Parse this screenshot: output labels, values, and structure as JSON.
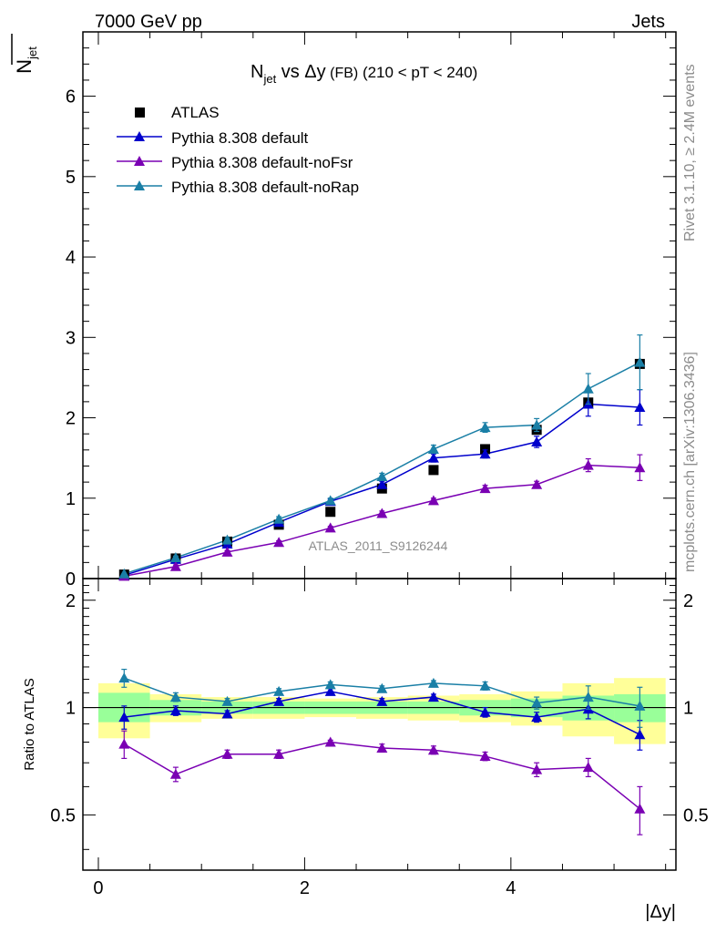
{
  "header": {
    "left": "7000 GeV pp",
    "right": "Jets"
  },
  "side_labels": {
    "rivet": "Rivet 3.1.10, ≥ 2.4M events",
    "mcplots": "mcplots.cern.ch [arXiv:1306.3436]"
  },
  "watermark": "ATLAS_2011_S9126244",
  "title": {
    "prefix": "N",
    "prefix_sub": "jet",
    "middle": " vs Δy",
    "small": " (FB)",
    "range": " (210 < pT < 240)"
  },
  "ylabel": {
    "main": "N",
    "sub": "jet"
  },
  "ratio_ylabel": "Ratio to ATLAS",
  "xlabel": "|Δy|",
  "colors": {
    "atlas": "#000000",
    "default": "#0000cc",
    "noFsr": "#7a00b3",
    "noRap": "#1a7fa6",
    "band_inner": "#99ff99",
    "band_outer": "#ffff99"
  },
  "chart_data": {
    "type": "scatter",
    "main": {
      "xlim": [
        -0.15,
        5.6
      ],
      "ylim": [
        0,
        6.8
      ],
      "yticks": [
        0,
        1,
        2,
        3,
        4,
        5,
        6
      ],
      "ytick_labels": [
        "0",
        "1",
        "2",
        "3",
        "4",
        "5",
        "6"
      ]
    },
    "ratio": {
      "ylim": [
        0.35,
        2.3
      ],
      "yticks": [
        0.5,
        1,
        2
      ],
      "ytick_labels": [
        "0.5",
        "1",
        "2"
      ]
    },
    "xticks": [
      0,
      2,
      4
    ],
    "xtick_labels": [
      "0",
      "2",
      "4"
    ],
    "bins": [
      [
        0,
        0.5
      ],
      [
        0.5,
        1.0
      ],
      [
        1.0,
        1.5
      ],
      [
        1.5,
        2.0
      ],
      [
        2.0,
        2.5
      ],
      [
        2.5,
        3.0
      ],
      [
        3.0,
        3.5
      ],
      [
        3.5,
        4.0
      ],
      [
        4.0,
        4.5
      ],
      [
        4.5,
        5.0
      ],
      [
        5.0,
        5.5
      ]
    ],
    "x": [
      0.25,
      0.75,
      1.25,
      1.75,
      2.25,
      2.75,
      3.25,
      3.75,
      4.25,
      4.75,
      5.25
    ],
    "legend": [
      "ATLAS",
      "Pythia 8.308 default",
      "Pythia 8.308 default-noFsr",
      "Pythia 8.308 default-noRap"
    ],
    "series": [
      {
        "name": "ATLAS",
        "key": "atlas",
        "values": [
          0.05,
          0.25,
          0.46,
          0.67,
          0.83,
          1.12,
          1.35,
          1.61,
          1.85,
          2.19,
          2.67
        ]
      },
      {
        "name": "Pythia 8.308 default",
        "key": "default",
        "values": [
          0.04,
          0.24,
          0.43,
          0.7,
          0.96,
          1.17,
          1.5,
          1.55,
          1.7,
          2.17,
          2.13
        ],
        "err": [
          0.01,
          0.02,
          0.03,
          0.03,
          0.03,
          0.04,
          0.05,
          0.05,
          0.07,
          0.15,
          0.22
        ],
        "ratio": [
          0.94,
          0.98,
          0.96,
          1.04,
          1.11,
          1.04,
          1.07,
          0.97,
          0.94,
          0.99,
          0.84
        ],
        "ratio_err": [
          0.07,
          0.03,
          0.02,
          0.02,
          0.02,
          0.02,
          0.02,
          0.03,
          0.03,
          0.06,
          0.08
        ]
      },
      {
        "name": "Pythia 8.308 default-noFsr",
        "key": "noFsr",
        "values": [
          0.03,
          0.15,
          0.33,
          0.45,
          0.63,
          0.81,
          0.97,
          1.12,
          1.17,
          1.41,
          1.38
        ],
        "err": [
          0.01,
          0.02,
          0.02,
          0.02,
          0.02,
          0.03,
          0.03,
          0.04,
          0.04,
          0.08,
          0.16
        ],
        "ratio": [
          0.79,
          0.65,
          0.74,
          0.74,
          0.8,
          0.77,
          0.76,
          0.73,
          0.67,
          0.68,
          0.52
        ],
        "ratio_err": [
          0.07,
          0.03,
          0.02,
          0.02,
          0.01,
          0.02,
          0.02,
          0.02,
          0.03,
          0.04,
          0.08
        ]
      },
      {
        "name": "Pythia 8.308 default-noRap",
        "key": "noRap",
        "values": [
          0.06,
          0.26,
          0.48,
          0.74,
          0.97,
          1.27,
          1.61,
          1.88,
          1.91,
          2.36,
          2.69
        ],
        "err": [
          0.01,
          0.02,
          0.03,
          0.03,
          0.03,
          0.04,
          0.05,
          0.06,
          0.08,
          0.19,
          0.34
        ],
        "ratio": [
          1.21,
          1.07,
          1.04,
          1.11,
          1.16,
          1.13,
          1.17,
          1.15,
          1.03,
          1.07,
          1.01
        ],
        "ratio_err": [
          0.07,
          0.03,
          0.02,
          0.02,
          0.02,
          0.02,
          0.02,
          0.03,
          0.04,
          0.08,
          0.13
        ]
      }
    ],
    "band": {
      "inner": [
        [
          0.91,
          1.1
        ],
        [
          0.95,
          1.05
        ],
        [
          0.96,
          1.04
        ],
        [
          0.96,
          1.04
        ],
        [
          0.96,
          1.04
        ],
        [
          0.96,
          1.04
        ],
        [
          0.96,
          1.04
        ],
        [
          0.95,
          1.05
        ],
        [
          0.94,
          1.06
        ],
        [
          0.92,
          1.08
        ],
        [
          0.91,
          1.09
        ]
      ],
      "outer": [
        [
          0.82,
          1.17
        ],
        [
          0.91,
          1.09
        ],
        [
          0.93,
          1.07
        ],
        [
          0.93,
          1.07
        ],
        [
          0.94,
          1.06
        ],
        [
          0.93,
          1.07
        ],
        [
          0.92,
          1.08
        ],
        [
          0.91,
          1.09
        ],
        [
          0.89,
          1.11
        ],
        [
          0.83,
          1.17
        ],
        [
          0.79,
          1.21
        ]
      ]
    }
  }
}
